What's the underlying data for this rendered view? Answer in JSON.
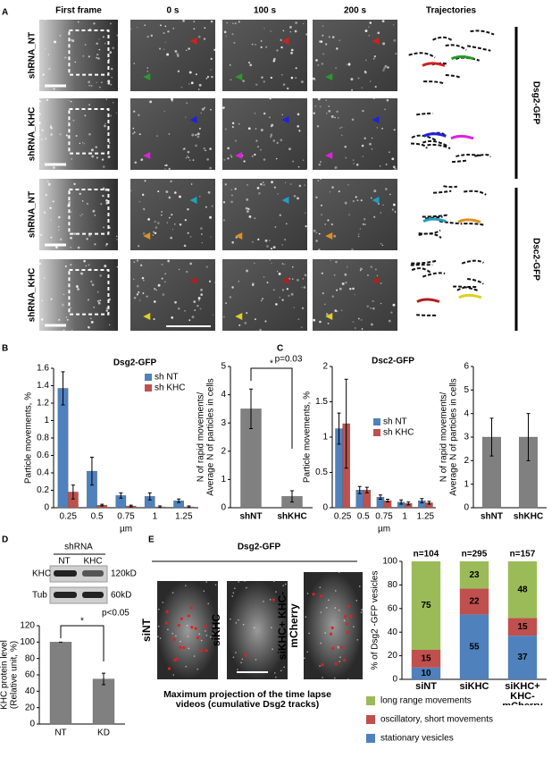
{
  "panel_labels": [
    "A",
    "B",
    "C",
    "D",
    "E"
  ],
  "panel_a": {
    "column_titles": [
      "First frame",
      "0 s",
      "100 s",
      "200 s",
      "Trajectories"
    ],
    "row_labels": [
      "shRNA_NT",
      "shRNA_KHC",
      "shRNA_NT",
      "shRNA_KHC"
    ],
    "group_labels": [
      "Dsg2-GFP",
      "Dsc2-GFP"
    ]
  },
  "panel_d": {
    "blot_header": "shRNA",
    "lanes": [
      "NT",
      "KHC"
    ],
    "bands": [
      {
        "name": "KHC",
        "size": "120kD"
      },
      {
        "name": "Tub",
        "size": "60kD"
      }
    ]
  },
  "panel_e": {
    "title": "Dsg2-GFP",
    "image_labels": [
      "siNT",
      "siKHC",
      "siKHC+ KHC-mCherry"
    ],
    "caption": "Maximum projection of the time lapse videos (cumulative Dsg2 tracks)"
  },
  "chart_data": [
    {
      "type": "bar",
      "title": "Dsg2-GFP",
      "ylabel": [
        "Particle movements, %"
      ],
      "xlabel": "µm",
      "categories": [
        "0.25",
        "0.5",
        "0.75",
        "1",
        "1.25"
      ],
      "series": [
        {
          "name": "sh NT",
          "color": "#4f81bd",
          "values": [
            1.37,
            0.42,
            0.14,
            0.13,
            0.08
          ],
          "errors": [
            0.19,
            0.16,
            0.03,
            0.04,
            0.02
          ]
        },
        {
          "name": "sh KHC",
          "color": "#c0504d",
          "values": [
            0.18,
            0.03,
            0.02,
            0.01,
            0.01
          ],
          "errors": [
            0.08,
            0.01,
            0.01,
            0.01,
            0.01
          ]
        }
      ],
      "ylim": [
        0,
        1.6
      ],
      "yticks": [
        0,
        0.2,
        0.4,
        0.6,
        0.8,
        1,
        1.2,
        1.4,
        1.6
      ],
      "legend": "upper right"
    },
    {
      "type": "bar",
      "ylabel": [
        "N of rapid movements/",
        "Average N of particles in cells"
      ],
      "categories": [
        "shNT",
        "shKHC"
      ],
      "values": [
        3.5,
        0.4
      ],
      "errors": [
        0.7,
        0.2
      ],
      "color": "#808080",
      "ylim": [
        0,
        5
      ],
      "yticks": [
        0,
        1,
        2,
        3,
        4,
        5
      ],
      "annotations": [
        "*",
        "p=0.03"
      ]
    },
    {
      "type": "bar",
      "title": "Dsc2-GFP",
      "ylabel": [
        "Particle movements, %"
      ],
      "xlabel": "µm",
      "categories": [
        "0.25",
        "0.5",
        "0.75",
        "1",
        "1.25"
      ],
      "series": [
        {
          "name": "sh NT",
          "color": "#4f81bd",
          "values": [
            1.12,
            0.25,
            0.15,
            0.08,
            0.1
          ],
          "errors": [
            0.22,
            0.05,
            0.03,
            0.03,
            0.03
          ]
        },
        {
          "name": "sh KHC",
          "color": "#c0504d",
          "values": [
            1.19,
            0.25,
            0.1,
            0.06,
            0.07
          ],
          "errors": [
            0.63,
            0.04,
            0.02,
            0.02,
            0.02
          ]
        }
      ],
      "ylim": [
        0,
        2
      ],
      "yticks": [
        0,
        0.5,
        1,
        1.5,
        2
      ],
      "legend": "center right"
    },
    {
      "type": "bar",
      "ylabel": [
        "N of rapid movements/",
        "Average N of particles in cells"
      ],
      "categories": [
        "shNT",
        "shKHC"
      ],
      "values": [
        3,
        3
      ],
      "errors": [
        0.8,
        1
      ],
      "color": "#808080",
      "ylim": [
        0,
        6
      ],
      "yticks": [
        0,
        1,
        2,
        3,
        4,
        5,
        6
      ]
    },
    {
      "type": "bar",
      "ylabel": [
        "KHC protein level",
        "(Relative unit, %)"
      ],
      "categories": [
        "NT",
        "KD"
      ],
      "values": [
        100,
        55
      ],
      "errors": [
        0,
        7
      ],
      "color": "#808080",
      "ylim": [
        0,
        120
      ],
      "yticks": [
        0,
        20,
        40,
        60,
        80,
        100,
        120
      ],
      "annotations": [
        "*",
        "p<0.05"
      ]
    },
    {
      "type": "stacked_bar",
      "ylabel": [
        "% of Dsg2 -GFP vesicles"
      ],
      "categories": [
        "siNT",
        "siKHC",
        "siKHC+ KHC-mCherry"
      ],
      "top_labels": [
        "n=104",
        "n=295",
        "n=157"
      ],
      "series": [
        {
          "name": "stationary vesicles",
          "color": "#4f81bd",
          "values": [
            10,
            55,
            37
          ]
        },
        {
          "name": "oscillatory, short movements",
          "color": "#c0504d",
          "values": [
            15,
            22,
            15
          ]
        },
        {
          "name": "long range movements",
          "color": "#9bbb59",
          "values": [
            75,
            23,
            48
          ]
        }
      ],
      "ylim": [
        0,
        100
      ],
      "yticks": [
        0,
        20,
        40,
        60,
        80,
        100
      ],
      "legend": "below"
    }
  ]
}
